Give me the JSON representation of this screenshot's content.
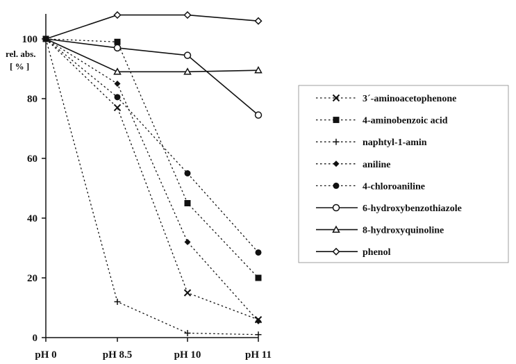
{
  "chart_data": {
    "type": "line",
    "title": "",
    "ylabel_line1": "rel. abs.",
    "ylabel_line2": "[ % ]",
    "xlabel": "",
    "categories": [
      "pH 0",
      "pH 8.5",
      "pH 10",
      "pH 11"
    ],
    "ylim": [
      0,
      110
    ],
    "yticks": [
      0,
      20,
      40,
      60,
      80,
      100
    ],
    "grid": false,
    "legend_position": "right",
    "series": [
      {
        "name": "3´-aminoacetophenone",
        "values": [
          100,
          77,
          15,
          6
        ],
        "dash": "dotted",
        "marker": "x"
      },
      {
        "name": "4-aminobenzoic acid",
        "values": [
          100,
          99,
          45,
          20
        ],
        "dash": "dotted",
        "marker": "square-filled"
      },
      {
        "name": "naphtyl-1-amin",
        "values": [
          100,
          12,
          1.5,
          1
        ],
        "dash": "dotted",
        "marker": "plus"
      },
      {
        "name": "aniline",
        "values": [
          100,
          85,
          32,
          5.5
        ],
        "dash": "dotted",
        "marker": "diamond-filled"
      },
      {
        "name": "4-chloroaniline",
        "values": [
          100,
          80.5,
          55,
          28.5
        ],
        "dash": "dotted",
        "marker": "circle-filled"
      },
      {
        "name": "6-hydroxybenzothiazole",
        "values": [
          100,
          97,
          94.5,
          74.5
        ],
        "dash": "solid",
        "marker": "circle-open"
      },
      {
        "name": "8-hydroxyquinoline",
        "values": [
          100,
          89,
          89,
          89.5
        ],
        "dash": "solid",
        "marker": "triangle-open"
      },
      {
        "name": "phenol",
        "values": [
          100,
          108,
          108,
          106
        ],
        "dash": "solid",
        "marker": "diamond-open"
      }
    ]
  }
}
